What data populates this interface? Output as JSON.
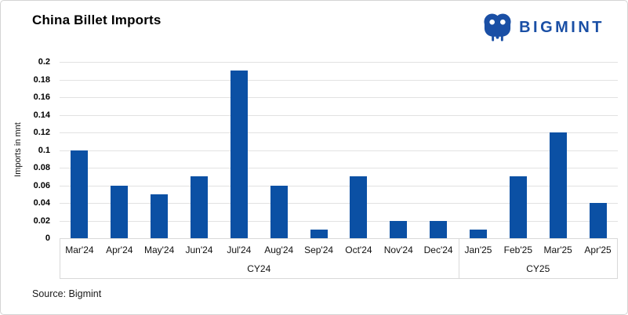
{
  "header": {
    "title": "China Billet Imports",
    "logo": {
      "text": "BIGMINT",
      "icon": "elephant-icon",
      "color": "#1a4fa5"
    }
  },
  "chart_data": {
    "type": "bar",
    "title": "China Billet Imports",
    "categories": [
      "Mar'24",
      "Apr'24",
      "May'24",
      "Jun'24",
      "Jul'24",
      "Aug'24",
      "Sep'24",
      "Oct'24",
      "Nov'24",
      "Dec'24",
      "Jan'25",
      "Feb'25",
      "Mar'25",
      "Apr'25"
    ],
    "values": [
      0.1,
      0.06,
      0.05,
      0.07,
      0.19,
      0.06,
      0.01,
      0.07,
      0.02,
      0.02,
      0.01,
      0.07,
      0.12,
      0.04
    ],
    "groups": [
      {
        "label": "CY24",
        "span": 10
      },
      {
        "label": "CY25",
        "span": 4
      }
    ],
    "xlabel": "",
    "ylabel": "Imports in mnt",
    "ylim": [
      0,
      0.2
    ],
    "ytick_step": 0.02,
    "yticks": [
      "0.2",
      "0.18",
      "0.16",
      "0.14",
      "0.12",
      "0.1",
      "0.08",
      "0.06",
      "0.04",
      "0.02",
      "0"
    ],
    "bar_color": "#0b50a4",
    "grid": true,
    "gridline_color": "#e2e2e2",
    "legend": "none"
  },
  "footer": {
    "source": "Source: Bigmint"
  }
}
